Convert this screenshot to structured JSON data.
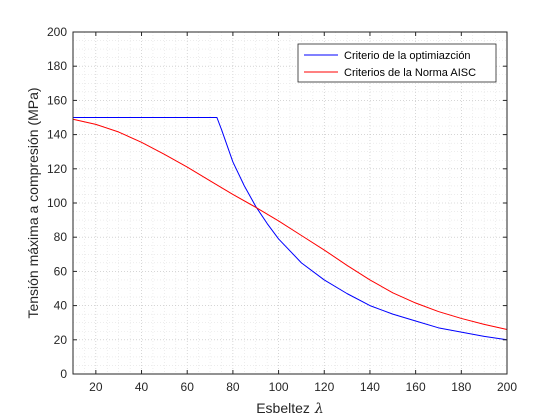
{
  "chart_data": {
    "type": "line",
    "xlabel": "Esbeltez",
    "xlabel_symbol": "λ",
    "ylabel": "Tensión máxima a compresión (MPa)",
    "xlim": [
      10,
      200
    ],
    "ylim": [
      0,
      200
    ],
    "xticks": [
      20,
      40,
      60,
      80,
      100,
      120,
      140,
      160,
      180,
      200
    ],
    "yticks": [
      0,
      20,
      40,
      60,
      80,
      100,
      120,
      140,
      160,
      180,
      200
    ],
    "grid": "dotted",
    "legend_position": "top-right",
    "series": [
      {
        "name": "Criterio de la optimiazción",
        "color": "#0000ff",
        "x": [
          10,
          20,
          30,
          40,
          50,
          60,
          70,
          73,
          75,
          80,
          85,
          90,
          95,
          100,
          110,
          120,
          130,
          140,
          150,
          160,
          170,
          180,
          190,
          200
        ],
        "y": [
          150,
          150,
          150,
          150,
          150,
          150,
          150,
          150,
          143,
          124,
          110,
          98,
          88,
          79,
          65,
          55,
          47,
          40,
          35,
          31,
          27,
          24.5,
          22,
          20
        ]
      },
      {
        "name": "Criterios de la Norma AISC",
        "color": "#ff0000",
        "x": [
          10,
          20,
          30,
          40,
          50,
          60,
          70,
          80,
          90,
          100,
          110,
          120,
          130,
          140,
          150,
          160,
          170,
          180,
          190,
          200
        ],
        "y": [
          149,
          146,
          141.5,
          135.5,
          128.5,
          121,
          113,
          105,
          97.5,
          89.5,
          81,
          72.5,
          63.5,
          55,
          47.5,
          41.5,
          36.5,
          32.5,
          29,
          26
        ]
      }
    ]
  }
}
